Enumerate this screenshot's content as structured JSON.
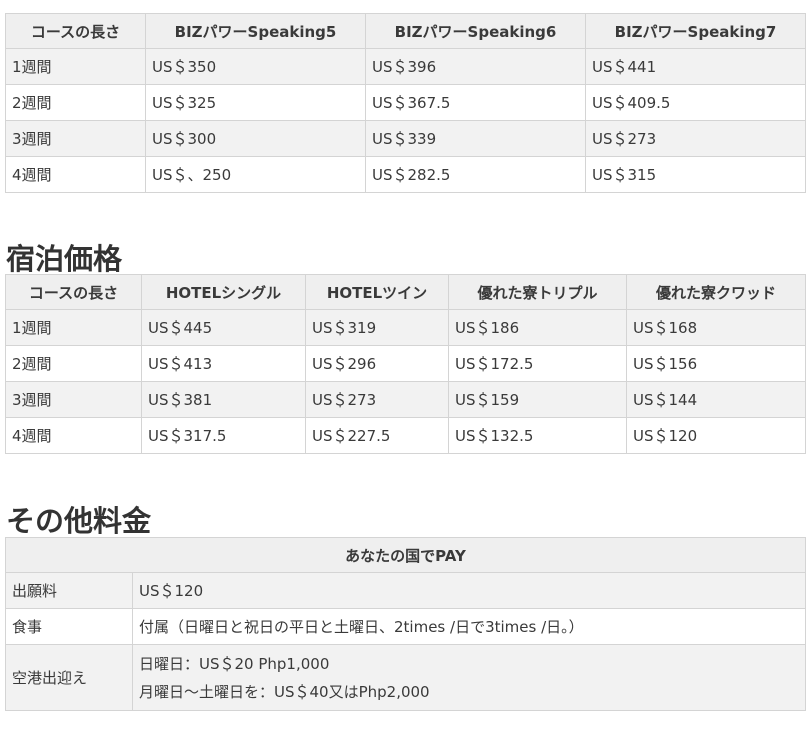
{
  "course_table": {
    "headers": [
      "コースの長さ",
      "BIZパワーSpeaking5",
      "BIZパワーSpeaking6",
      "BIZパワーSpeaking7"
    ],
    "rows": [
      [
        "1週間",
        "US＄350",
        "US＄396",
        "US＄441"
      ],
      [
        "2週間",
        "US＄325",
        "US＄367.5",
        "US＄409.5"
      ],
      [
        "3週間",
        "US＄300",
        "US＄339",
        "US＄273"
      ],
      [
        "4週間",
        "US＄、250",
        "US＄282.5",
        "US＄315"
      ]
    ]
  },
  "accommodation": {
    "title": "宿泊価格",
    "headers": [
      "コースの長さ",
      "HOTELシングル",
      "HOTELツイン",
      "優れた寮トリプル",
      "優れた寮クワッド"
    ],
    "rows": [
      [
        "1週間",
        "US＄445",
        "US＄319",
        "US＄186",
        "US＄168"
      ],
      [
        "2週間",
        "US＄413",
        "US＄296",
        "US＄172.5",
        "US＄156"
      ],
      [
        "3週間",
        "US＄381",
        "US＄273",
        "US＄159",
        "US＄144"
      ],
      [
        "4週間",
        "US＄317.5",
        "US＄227.5",
        "US＄132.5",
        "US＄120"
      ]
    ]
  },
  "other_fees": {
    "title": "その他料金",
    "header": "あなたの国でPAY",
    "rows": [
      {
        "label": "出願料",
        "value": "US＄120"
      },
      {
        "label": "食事",
        "value": "付属（日曜日と祝日の平日と土曜日、2times /日で3times /日。）"
      },
      {
        "label": "空港出迎え",
        "lines": [
          "日曜日：US＄20 Php1,000",
          "月曜日～土曜日を：US＄40又はPhp2,000"
        ]
      }
    ]
  }
}
